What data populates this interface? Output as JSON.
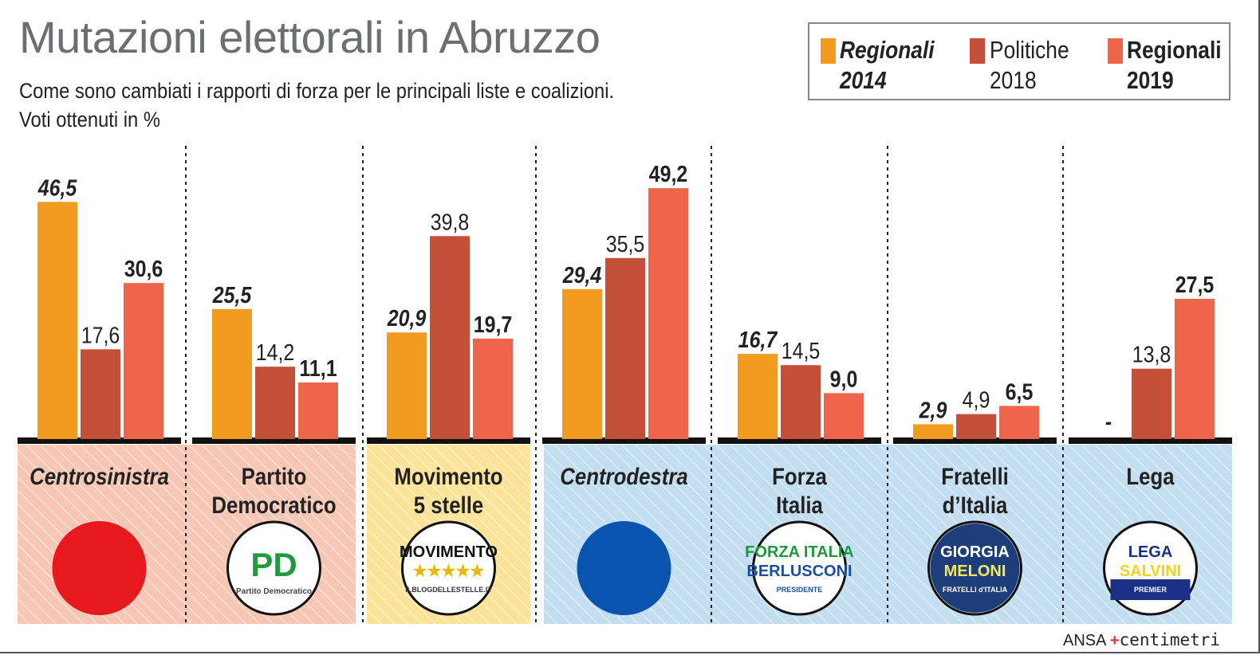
{
  "title": "Mutazioni elettorali in Abruzzo",
  "subtitle_line1": "Come sono cambiati i rapporti di forza per le principali liste e coalizioni.",
  "subtitle_line2": "Voti ottenuti in %",
  "credit": {
    "ansa": "ANSA",
    "centimetri": "centimetri"
  },
  "chart_data": {
    "type": "bar",
    "title": "Mutazioni elettorali in Abruzzo",
    "ylabel": "Voti ottenuti in %",
    "ylim": [
      0,
      50
    ],
    "grid": false,
    "legend_position": "top-right",
    "categories": [
      "Centrosinistra",
      "Partito Democratico",
      "Movimento 5 stelle",
      "Centrodestra",
      "Forza Italia",
      "Fratelli d'Italia",
      "Lega"
    ],
    "category_lines": [
      [
        "Centrosinistra"
      ],
      [
        "Partito",
        "Democratico"
      ],
      [
        "Movimento",
        "5 stelle"
      ],
      [
        "Centrodestra"
      ],
      [
        "Forza",
        "Italia"
      ],
      [
        "Fratelli",
        "d’Italia"
      ],
      [
        "Lega"
      ]
    ],
    "coalition": [
      true,
      false,
      false,
      true,
      false,
      false,
      false
    ],
    "series": [
      {
        "name": "Regionali 2014",
        "legend_lines": [
          "Regionali",
          "2014"
        ],
        "color": "#f39a21",
        "values": [
          46.5,
          25.5,
          20.9,
          29.4,
          16.7,
          2.9,
          null
        ],
        "labels": [
          "46,5",
          "25,5",
          "20,9",
          "29,4",
          "16,7",
          "2,9",
          "-"
        ]
      },
      {
        "name": "Politiche 2018",
        "legend_lines": [
          "Politiche",
          "2018"
        ],
        "color": "#c5503a",
        "values": [
          17.6,
          14.2,
          39.8,
          35.5,
          14.5,
          4.9,
          13.8
        ],
        "labels": [
          "17,6",
          "14,2",
          "39,8",
          "35,5",
          "14,5",
          "4,9",
          "13,8"
        ]
      },
      {
        "name": "Regionali 2019",
        "legend_lines": [
          "Regionali",
          "2019"
        ],
        "color": "#ee654b",
        "values": [
          30.6,
          11.1,
          19.7,
          49.2,
          9.0,
          6.5,
          27.5
        ],
        "labels": [
          "30,6",
          "11,1",
          "19,7",
          "49,2",
          "9,0",
          "6,5",
          "27,5"
        ]
      }
    ],
    "panel_colors": {
      "left": "#f7c7b6",
      "m5s": "#fbe49a",
      "right": "#c3ddf1"
    },
    "logos": [
      {
        "kind": "dot",
        "color": "#e8191e"
      },
      {
        "kind": "logo",
        "text": [
          "PD",
          "Partito Democratico"
        ]
      },
      {
        "kind": "logo",
        "text": [
          "MOVIMENTO",
          "★★★★★",
          "ILBLOGDELLESTELLE.IT"
        ]
      },
      {
        "kind": "dot",
        "color": "#0a54b0"
      },
      {
        "kind": "logo",
        "text": [
          "FORZA ITALIA",
          "BERLUSCONI",
          "PRESIDENTE"
        ]
      },
      {
        "kind": "logo",
        "text": [
          "GIORGIA",
          "MELONI",
          "FRATELLI d'ITALIA"
        ]
      },
      {
        "kind": "logo",
        "text": [
          "LEGA",
          "SALVINI",
          "PREMIER"
        ]
      }
    ]
  }
}
